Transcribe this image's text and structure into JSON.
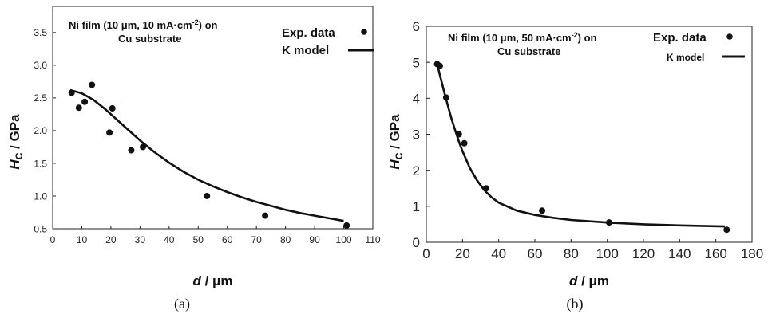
{
  "chart_data": [
    {
      "panel_label": "(a)",
      "type": "scatter",
      "xlabel_symbol": "d",
      "xlabel_unit": " / μm",
      "ylabel_symbol": "H",
      "ylabel_sub": "C",
      "ylabel_unit": " / GPa",
      "xlim": [
        0,
        110
      ],
      "ylim": [
        0.5,
        3.9
      ],
      "xticks": [
        0,
        10,
        20,
        30,
        40,
        50,
        60,
        70,
        80,
        90,
        100,
        110
      ],
      "yticks": [
        0.5,
        1.0,
        1.5,
        2.0,
        2.5,
        3.0,
        3.5
      ],
      "ytick_labels": [
        "0.5",
        "1.0",
        "1.5",
        "2.0",
        "2.5",
        "3.0",
        "3.5"
      ],
      "annotation_line1": "Ni film (10 μm, 10 mA·cm",
      "annotation_sup": "-2",
      "annotation_line1_end": ") on",
      "annotation_line2": "Cu substrate",
      "legend": [
        "Exp. data",
        "K model"
      ],
      "series": [
        {
          "name": "Exp. data",
          "kind": "points",
          "x": [
            6.5,
            9,
            11,
            13.5,
            19.5,
            20.5,
            27,
            31,
            53,
            73,
            101
          ],
          "y": [
            2.58,
            2.35,
            2.44,
            2.7,
            1.97,
            2.34,
            1.7,
            1.75,
            1.0,
            0.7,
            0.55
          ]
        },
        {
          "name": "K model",
          "kind": "line",
          "x": [
            6,
            10,
            14,
            18,
            22,
            26,
            30,
            35,
            40,
            45,
            50,
            55,
            60,
            65,
            70,
            75,
            80,
            85,
            90,
            95,
            100
          ],
          "y": [
            2.62,
            2.57,
            2.47,
            2.33,
            2.17,
            2.01,
            1.85,
            1.67,
            1.51,
            1.37,
            1.25,
            1.15,
            1.06,
            0.98,
            0.91,
            0.85,
            0.79,
            0.74,
            0.7,
            0.66,
            0.62
          ]
        }
      ]
    },
    {
      "panel_label": "(b)",
      "type": "scatter",
      "xlabel_symbol": "d",
      "xlabel_unit": " / μm",
      "ylabel_symbol": "H",
      "ylabel_sub": "C",
      "ylabel_unit": " / GPa",
      "xlim": [
        0,
        180
      ],
      "ylim": [
        0,
        6
      ],
      "xticks": [
        0,
        20,
        40,
        60,
        80,
        100,
        120,
        140,
        160,
        180
      ],
      "yticks": [
        0,
        1,
        2,
        3,
        4,
        5,
        6
      ],
      "ytick_labels": [
        "0",
        "1",
        "2",
        "3",
        "4",
        "5",
        "6"
      ],
      "annotation_line1": "Ni film (10 μm, 50 mA·cm",
      "annotation_sup": "-2",
      "annotation_line1_end": ") on",
      "annotation_line2": "Cu substrate",
      "legend": [
        "Exp. data",
        "K model"
      ],
      "series": [
        {
          "name": "Exp. data",
          "kind": "points",
          "x": [
            6,
            7.5,
            11,
            18,
            21,
            33,
            64,
            101,
            166
          ],
          "y": [
            4.95,
            4.9,
            4.02,
            3.0,
            2.75,
            1.5,
            0.88,
            0.55,
            0.35
          ]
        },
        {
          "name": "K model",
          "kind": "line",
          "x": [
            6,
            8,
            10,
            12,
            14,
            16,
            18,
            20,
            24,
            28,
            32,
            36,
            40,
            50,
            60,
            70,
            80,
            100,
            120,
            140,
            165
          ],
          "y": [
            4.95,
            4.55,
            4.15,
            3.78,
            3.42,
            3.1,
            2.8,
            2.53,
            2.07,
            1.72,
            1.45,
            1.25,
            1.1,
            0.88,
            0.76,
            0.68,
            0.62,
            0.55,
            0.5,
            0.47,
            0.44
          ]
        }
      ]
    }
  ]
}
